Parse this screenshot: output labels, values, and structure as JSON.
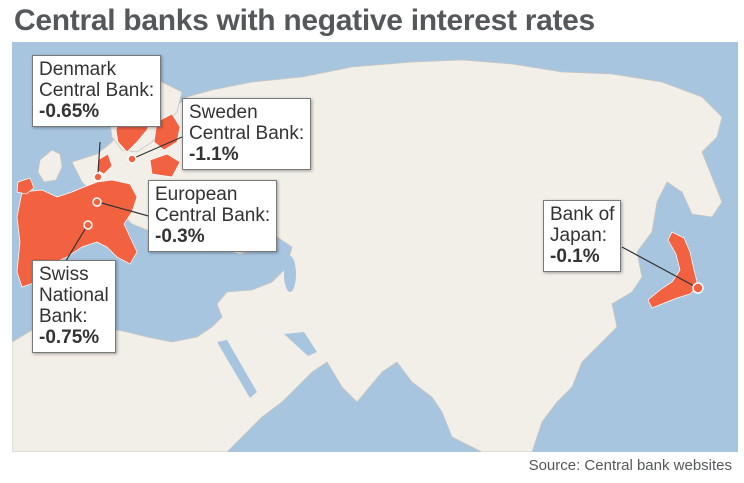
{
  "title": "Central banks with negative interest rates",
  "source": "Source: Central bank websites",
  "colors": {
    "ocean": "#a8c5e0",
    "land": "#f2efe9",
    "highlight": "#f26241",
    "text": "#55585b",
    "border": "#c9c6c0"
  },
  "banks": [
    {
      "label": "Denmark\nCentral Bank:",
      "value": "-0.65%"
    },
    {
      "label": "Sweden\nCentral Bank:",
      "value": "-1.1%"
    },
    {
      "label": "European\nCentral Bank:",
      "value": "-0.3%"
    },
    {
      "label": "Swiss\nNational\nBank:",
      "value": "-0.75%"
    },
    {
      "label": "Bank of\nJapan:",
      "value": "-0.1%"
    }
  ]
}
